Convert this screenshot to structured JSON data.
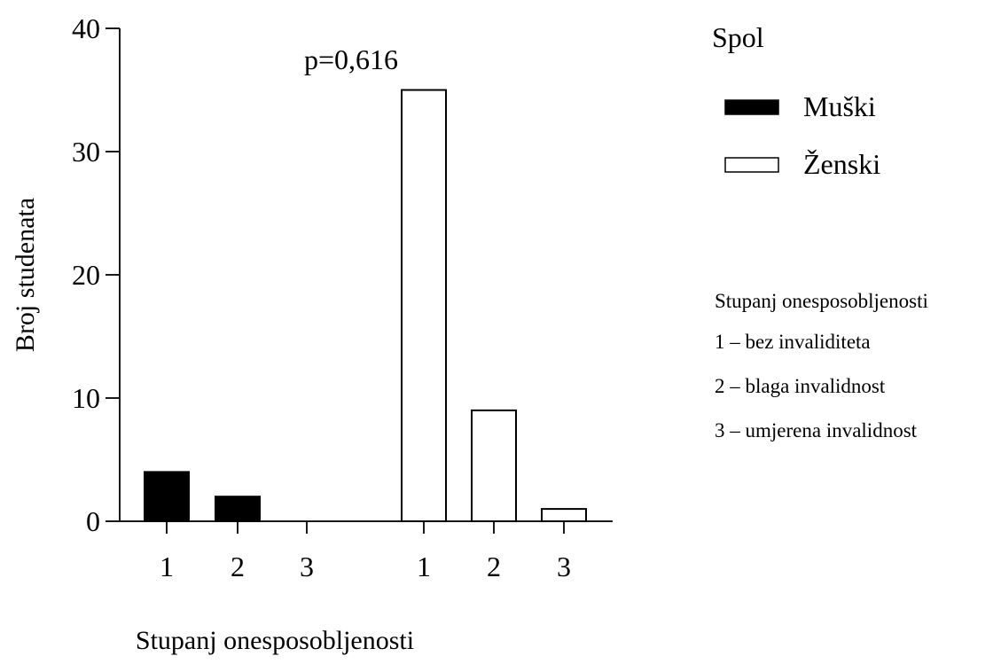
{
  "chart_data": {
    "type": "bar",
    "groups": [
      {
        "name": "Muški",
        "categories": [
          "1",
          "2",
          "3"
        ],
        "values": [
          4,
          2,
          0
        ]
      },
      {
        "name": "Ženski",
        "categories": [
          "1",
          "2",
          "3"
        ],
        "values": [
          35,
          9,
          1
        ]
      }
    ],
    "series": [
      {
        "name": "Muški",
        "fill": "#000000"
      },
      {
        "name": "Ženski",
        "fill": "#ffffff"
      }
    ],
    "ylabel": "Broj studenata",
    "xlabel": "Stupanj onesposobljenosti",
    "ylim": [
      0,
      40
    ],
    "yticks": [
      0,
      10,
      20,
      30,
      40
    ],
    "annotation": "p=0,616",
    "grid": false,
    "legend": {
      "title": "Spol",
      "position": "top-right",
      "items": [
        "Muški",
        "Ženski"
      ]
    },
    "note": {
      "title": "Stupanj onesposobljenosti",
      "items": [
        "1 – bez invaliditeta",
        "2 – blaga invalidnost",
        "3 – umjerena invalidnost"
      ]
    }
  }
}
